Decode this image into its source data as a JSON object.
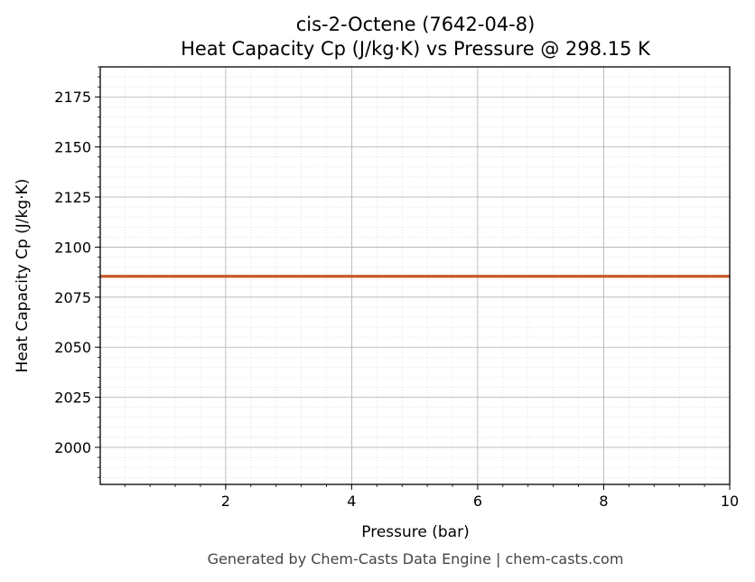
{
  "chart_data": {
    "type": "line",
    "title": "cis-2-Octene (7642-04-8)",
    "subtitle": "Heat Capacity Cp (J/kg·K) vs Pressure @ 298.15 K",
    "xlabel": "Pressure (bar)",
    "ylabel": "Heat Capacity Cp (J/kg·K)",
    "xlim": [
      0.01,
      10
    ],
    "ylim": [
      1981.5,
      2190
    ],
    "x_ticks": [
      2,
      4,
      6,
      8,
      10
    ],
    "y_ticks": [
      2000,
      2025,
      2050,
      2075,
      2100,
      2125,
      2150,
      2175
    ],
    "grid": true,
    "legend": "none",
    "series": [
      {
        "color": "#c8582a",
        "x": [
          0.01,
          1,
          2,
          3,
          4,
          5,
          6,
          7,
          8,
          9,
          10
        ],
        "y": [
          2085.4,
          2085.4,
          2085.4,
          2085.4,
          2085.4,
          2085.4,
          2085.4,
          2085.4,
          2085.4,
          2085.4,
          2085.4
        ]
      }
    ]
  },
  "footer": "Generated by Chem-Casts Data Engine | chem-casts.com"
}
